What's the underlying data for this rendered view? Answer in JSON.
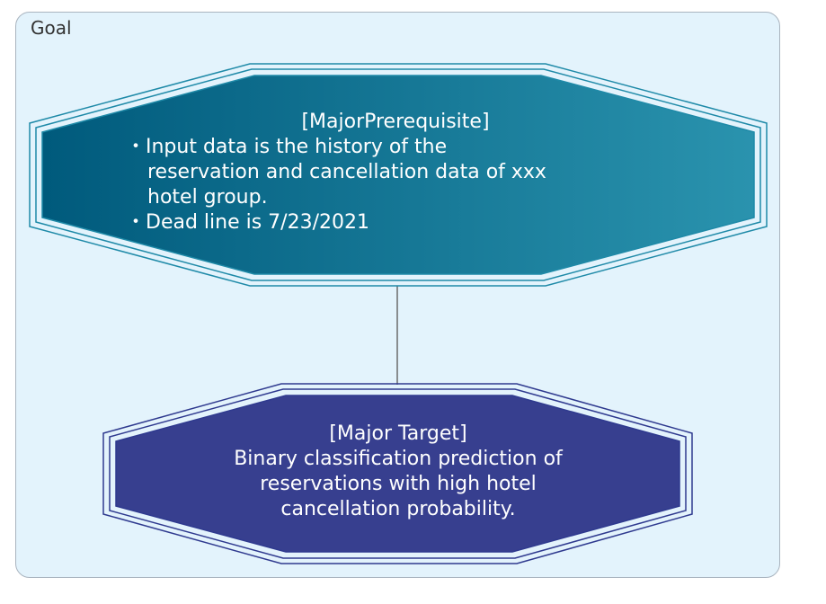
{
  "panel": {
    "label": "Goal"
  },
  "prerequisite": {
    "title": "[MajorPrerequisite]",
    "bullet1_line1": "・Input data is the history of the",
    "bullet1_line2": "reservation and cancellation data of xxx",
    "bullet1_line3": "hotel group.",
    "bullet2": "・Dead line is 7/23/2021",
    "color_start": "#005a7c",
    "color_end": "#2a93ae",
    "border_color": "#1f8aa8"
  },
  "target": {
    "title": "[Major Target]",
    "line1": "Binary classification prediction of",
    "line2": "reservations with high hotel",
    "line3": "cancellation probability.",
    "fill_color": "#373f8f",
    "border_color": "#2f3a8f"
  },
  "connector_color": "#6b6b6b"
}
